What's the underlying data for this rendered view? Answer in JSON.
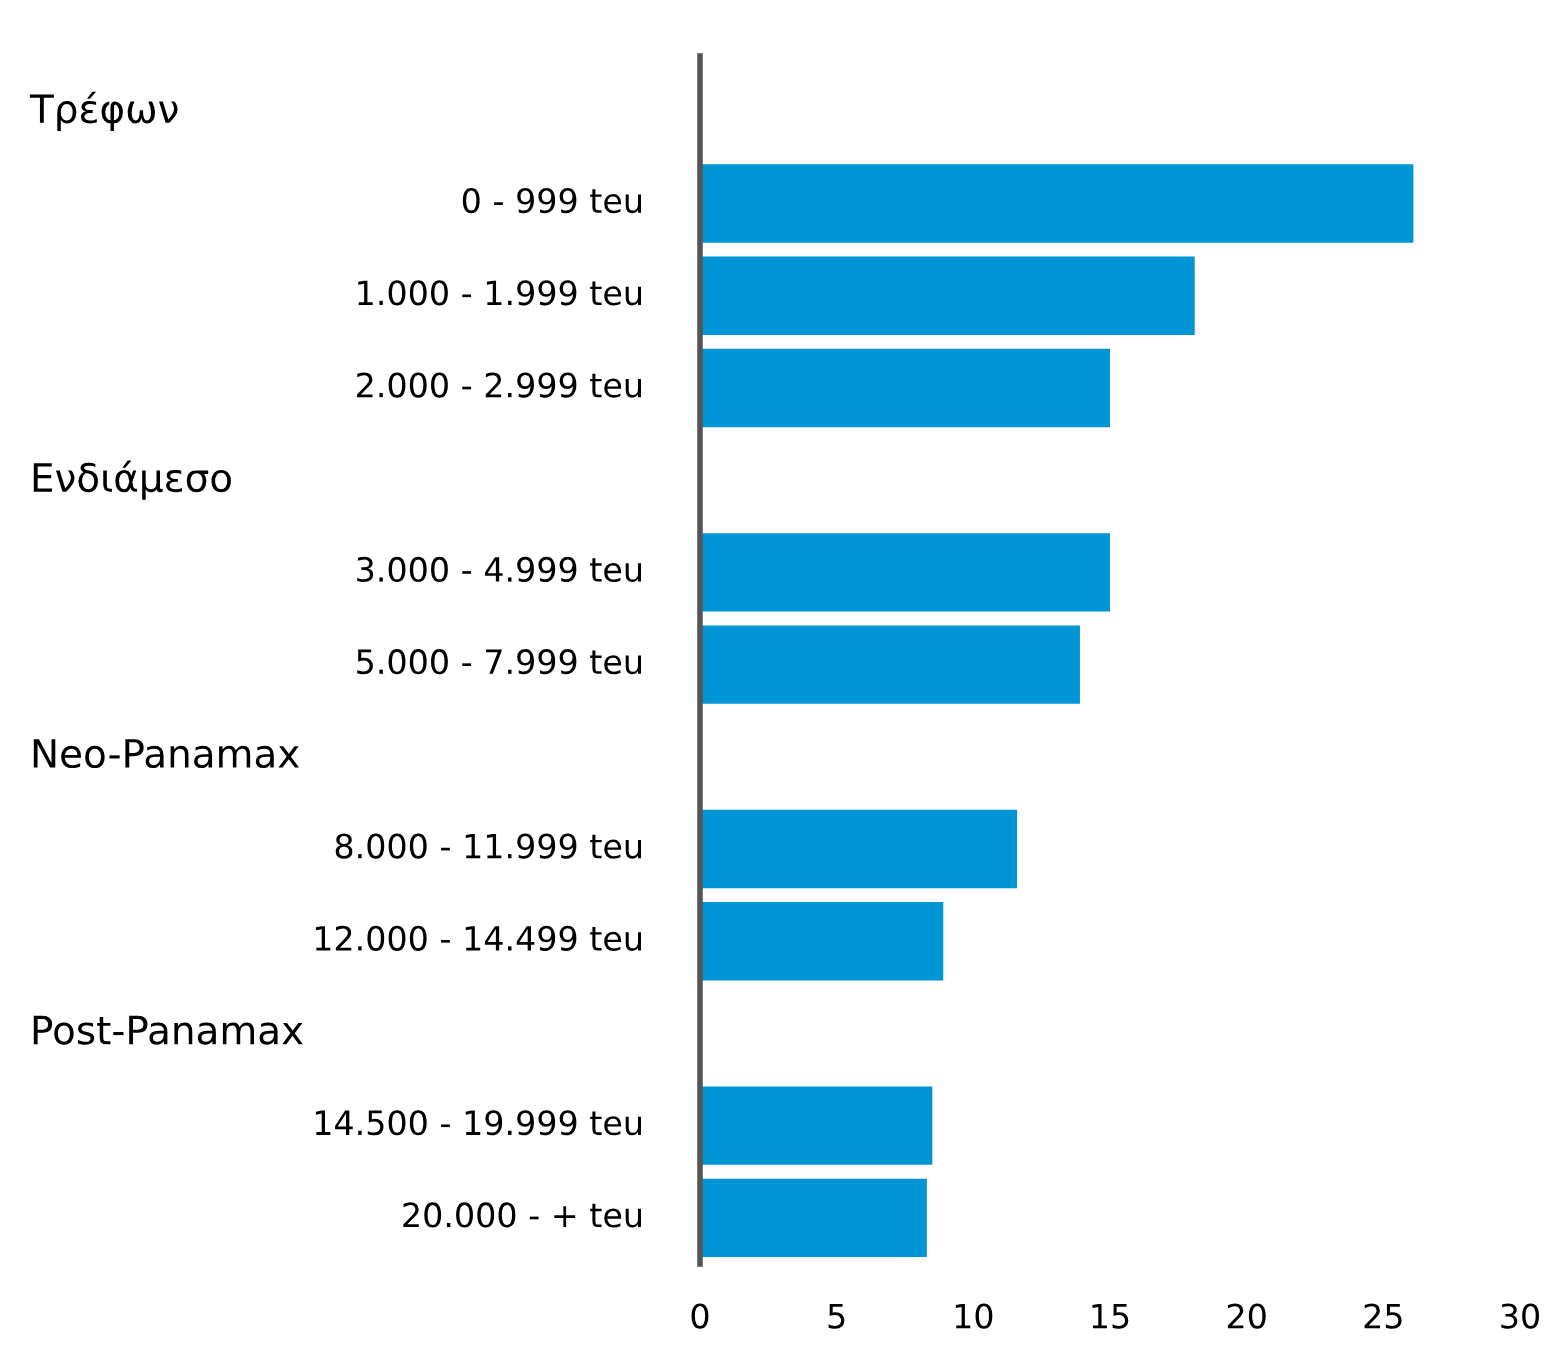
{
  "chart_data": {
    "type": "bar",
    "orientation": "horizontal",
    "color": "#0096d6",
    "annotations": [
      "Τρέφων",
      "Ενδιάμεσο",
      "Neo-Panamax",
      "Post-Panamax"
    ],
    "categories": [
      null,
      "0 - 999 teu",
      "1.000 - 1.999 teu",
      "2.000 - 2.999 teu",
      null,
      "3.000 - 4.999 teu",
      "5.000 - 7.999 teu",
      null,
      "8.000 - 11.999 teu",
      "12.000 - 14.499 teu",
      null,
      "14.500 - 19.999 teu",
      "20.000 - + teu"
    ],
    "values": [
      null,
      26.1,
      18.1,
      15.0,
      null,
      15.0,
      13.9,
      null,
      11.6,
      8.9,
      null,
      8.5,
      8.3
    ],
    "xlim": [
      0,
      30
    ],
    "xticks": [
      0,
      5,
      10,
      15,
      20,
      25,
      30
    ],
    "grid": false
  }
}
